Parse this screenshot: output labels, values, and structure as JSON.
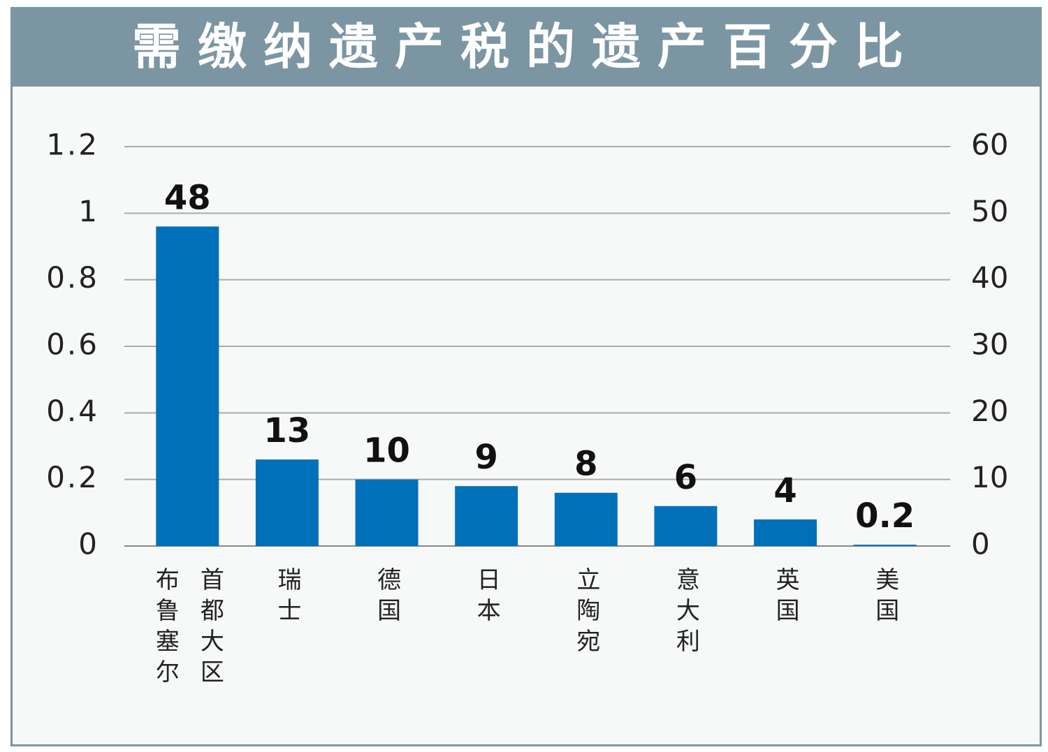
{
  "chart_data": {
    "type": "bar",
    "title": "需缴纳遗产税的遗产百分比",
    "categories": [
      "布鲁塞尔首都大区",
      "瑞士",
      "德国",
      "日本",
      "立陶宛",
      "意大利",
      "英国",
      "美国"
    ],
    "series": [
      {
        "color": "#0070b8",
        "axis": "y2",
        "values": [
          48,
          13,
          10,
          9,
          8,
          6,
          4,
          0.2
        ]
      }
    ],
    "ylim": [
      0,
      1.2
    ],
    "yticks": [
      0,
      0.2,
      0.4,
      0.6,
      0.8,
      1,
      1.2
    ],
    "y2lim": [
      0,
      60
    ],
    "y2ticks": [
      0,
      10,
      20,
      30,
      40,
      50,
      60
    ],
    "grid": true
  }
}
